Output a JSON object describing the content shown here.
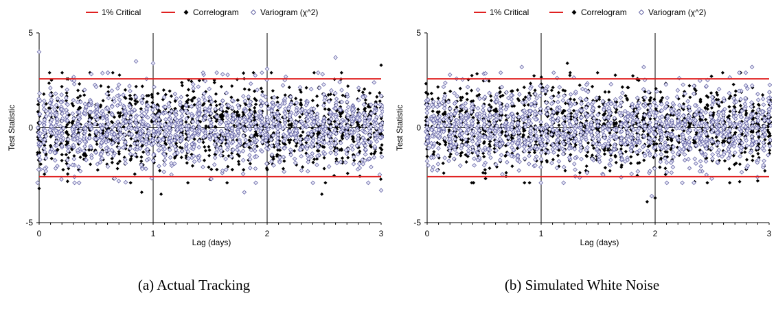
{
  "legend": {
    "critical": "1% Critical",
    "correlogram": "Correlogram",
    "variogram": "Variogram (χ^2)"
  },
  "colors": {
    "critical": "#e02020",
    "correlogram": "#000000",
    "variogram": "#6a6aa8",
    "variogram_fill": "#e6e6f6"
  },
  "chart_data": [
    {
      "type": "scatter",
      "caption": "(a) Actual Tracking",
      "xlabel": "Lag (days)",
      "ylabel": "Test Statistic",
      "xlim": [
        0,
        3
      ],
      "ylim": [
        -5,
        5
      ],
      "xticks": [
        "0",
        "1",
        "2",
        "3"
      ],
      "yticks": [
        "5",
        "0",
        "-5"
      ],
      "critical_values": [
        2.576,
        -2.576
      ],
      "legend_position": "top-center",
      "series": [
        {
          "name": "1% Critical",
          "style": "line"
        },
        {
          "name": "Correlogram",
          "style": "filled-diamond",
          "values_range": [
            -3.5,
            3.3
          ]
        },
        {
          "name": "Variogram (χ^2)",
          "style": "open-diamond",
          "values_range": [
            -3.4,
            4.0
          ]
        }
      ],
      "clusters": 60,
      "notable_points": [
        [
          0.0,
          4.0
        ],
        [
          0.0,
          -3.2
        ],
        [
          0.85,
          3.5
        ],
        [
          0.9,
          -3.4
        ],
        [
          1.0,
          3.4
        ],
        [
          1.07,
          -3.5
        ],
        [
          1.8,
          -3.5
        ],
        [
          1.88,
          2.9
        ],
        [
          2.0,
          3.1
        ],
        [
          2.48,
          -3.5
        ],
        [
          2.6,
          3.7
        ],
        [
          3.0,
          4.0
        ],
        [
          3.0,
          -3.3
        ]
      ]
    },
    {
      "type": "scatter",
      "caption": "(b) Simulated White Noise",
      "xlabel": "Lag (days)",
      "ylabel": "Test Statistic",
      "xlim": [
        0,
        3
      ],
      "ylim": [
        -5,
        5
      ],
      "xticks": [
        "0",
        "1",
        "2",
        "3"
      ],
      "yticks": [
        "5",
        "0",
        "-5"
      ],
      "critical_values": [
        2.576,
        -2.576
      ],
      "legend_position": "top-center",
      "series": [
        {
          "name": "1% Critical",
          "style": "line"
        },
        {
          "name": "Correlogram",
          "style": "filled-diamond",
          "values_range": [
            -3.9,
            3.5
          ]
        },
        {
          "name": "Variogram (χ^2)",
          "style": "open-diamond",
          "values_range": [
            -3.7,
            3.2
          ]
        }
      ],
      "clusters": 60,
      "notable_points": [
        [
          0.83,
          3.5
        ],
        [
          1.23,
          3.4
        ],
        [
          1.9,
          3.4
        ],
        [
          1.93,
          -3.9
        ],
        [
          1.97,
          -3.6
        ],
        [
          2.0,
          -3.7
        ],
        [
          2.85,
          3.2
        ],
        [
          2.9,
          -2.8
        ]
      ]
    }
  ]
}
